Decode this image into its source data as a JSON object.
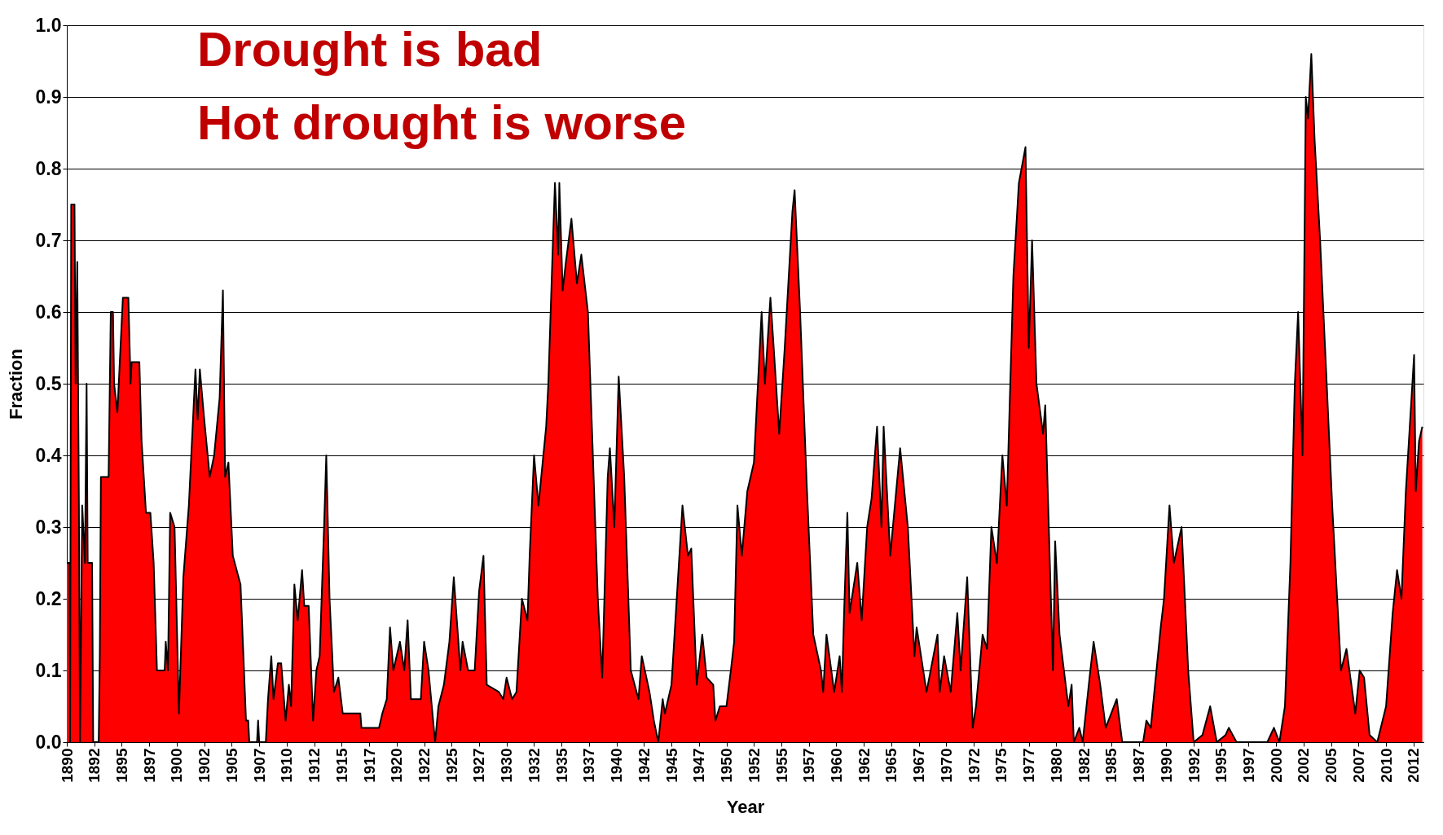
{
  "chart_data": {
    "type": "area",
    "xlabel": "Year",
    "ylabel": "Fraction",
    "annotations": [
      "Drought is bad",
      "Hot drought is worse"
    ],
    "xlim": [
      1890,
      2013.4
    ],
    "xticks": [
      1890,
      {
        "value": 1892.5,
        "label": "1892"
      },
      1895,
      {
        "value": 1897.5,
        "label": "1897"
      },
      1900,
      {
        "value": 1902.5,
        "label": "1902"
      },
      1905,
      {
        "value": 1907.5,
        "label": "1907"
      },
      1910,
      {
        "value": 1912.5,
        "label": "1912"
      },
      1915,
      {
        "value": 1917.5,
        "label": "1917"
      },
      1920,
      {
        "value": 1922.5,
        "label": "1922"
      },
      1925,
      {
        "value": 1927.5,
        "label": "1927"
      },
      1930,
      {
        "value": 1932.5,
        "label": "1932"
      },
      1935,
      {
        "value": 1937.5,
        "label": "1937"
      },
      1940,
      {
        "value": 1942.5,
        "label": "1942"
      },
      1945,
      {
        "value": 1947.5,
        "label": "1947"
      },
      1950,
      {
        "value": 1952.5,
        "label": "1952"
      },
      1955,
      {
        "value": 1957.5,
        "label": "1957"
      },
      1960,
      {
        "value": 1962.5,
        "label": "1962"
      },
      1965,
      {
        "value": 1967.5,
        "label": "1967"
      },
      1970,
      {
        "value": 1972.5,
        "label": "1972"
      },
      1975,
      {
        "value": 1977.5,
        "label": "1977"
      },
      1980,
      {
        "value": 1982.5,
        "label": "1982"
      },
      1985,
      {
        "value": 1987.5,
        "label": "1987"
      },
      1990,
      {
        "value": 1992.5,
        "label": "1992"
      },
      1995,
      {
        "value": 1997.5,
        "label": "1997"
      },
      2000,
      {
        "value": 2002.5,
        "label": "2002"
      },
      2005,
      {
        "value": 2007.5,
        "label": "2007"
      },
      2010,
      {
        "value": 2012.5,
        "label": "2012"
      }
    ],
    "ylim": [
      0,
      1
    ],
    "yticks": [
      {
        "value": 0,
        "label": "0.0"
      },
      0.1,
      0.2,
      0.3,
      0.4,
      0.5,
      0.6,
      0.7,
      0.8,
      0.9,
      {
        "value": 1,
        "label": "1.0"
      }
    ],
    "grid": "y",
    "series": [
      {
        "color": "#ff0000",
        "x": [
          1890.0,
          1890.25,
          1890.3,
          1890.4,
          1890.7,
          1890.8,
          1890.95,
          1891.1,
          1891.2,
          1891.4,
          1891.65,
          1891.8,
          1891.9,
          1892.3,
          1892.4,
          1892.9,
          1893.0,
          1893.1,
          1893.8,
          1894.0,
          1894.2,
          1894.3,
          1894.6,
          1895.1,
          1895.6,
          1895.8,
          1895.9,
          1896.6,
          1896.8,
          1897.2,
          1897.6,
          1897.9,
          1898.2,
          1898.9,
          1899.0,
          1899.2,
          1899.4,
          1899.8,
          1900.2,
          1900.6,
          1901.1,
          1901.7,
          1901.9,
          1902.1,
          1902.5,
          1903.0,
          1903.4,
          1903.9,
          1904.2,
          1904.4,
          1904.7,
          1905.1,
          1905.8,
          1906.3,
          1906.5,
          1906.6,
          1907.3,
          1907.4,
          1907.5,
          1908.1,
          1908.3,
          1908.6,
          1908.8,
          1909.2,
          1909.5,
          1909.9,
          1910.2,
          1910.4,
          1910.6,
          1910.7,
          1911.0,
          1911.4,
          1911.6,
          1912.0,
          1912.4,
          1912.7,
          1913.0,
          1913.4,
          1913.6,
          1913.9,
          1914.3,
          1914.7,
          1915.1,
          1916.7,
          1916.8,
          1918.4,
          1918.7,
          1919.1,
          1919.4,
          1919.7,
          1920.3,
          1920.7,
          1921.0,
          1921.3,
          1922.2,
          1922.5,
          1922.9,
          1923.5,
          1923.8,
          1924.3,
          1924.8,
          1925.2,
          1925.8,
          1926.0,
          1926.5,
          1927.1,
          1927.5,
          1927.9,
          1928.2,
          1929.3,
          1929.7,
          1930.0,
          1930.5,
          1930.9,
          1931.4,
          1931.9,
          1932.1,
          1932.5,
          1932.9,
          1933.6,
          1933.8,
          1934.2,
          1934.4,
          1934.7,
          1934.8,
          1935.1,
          1935.4,
          1935.9,
          1936.4,
          1936.8,
          1937.4,
          1938.3,
          1938.7,
          1939.2,
          1939.4,
          1939.8,
          1940.2,
          1940.7,
          1941.3,
          1942.0,
          1942.3,
          1943.0,
          1943.4,
          1943.8,
          1944.2,
          1944.4,
          1945.0,
          1945.4,
          1946.0,
          1946.5,
          1946.8,
          1947.3,
          1947.8,
          1948.2,
          1948.8,
          1949.0,
          1949.4,
          1950.0,
          1950.4,
          1950.7,
          1951.0,
          1951.4,
          1951.9,
          1952.5,
          1953.2,
          1953.5,
          1954.0,
          1954.3,
          1954.8,
          1955.3,
          1956.0,
          1956.2,
          1956.7,
          1957.3,
          1957.9,
          1958.6,
          1958.8,
          1959.1,
          1959.8,
          1960.3,
          1960.5,
          1960.7,
          1961.0,
          1961.2,
          1961.9,
          1962.3,
          1962.8,
          1963.2,
          1963.7,
          1964.1,
          1964.3,
          1964.9,
          1965.8,
          1966.5,
          1967.1,
          1967.3,
          1968.2,
          1969.2,
          1969.4,
          1969.8,
          1970.4,
          1971.0,
          1971.3,
          1971.9,
          1972.4,
          1972.7,
          1973.3,
          1973.7,
          1974.1,
          1974.6,
          1975.1,
          1975.5,
          1976.1,
          1976.6,
          1977.2,
          1977.5,
          1977.8,
          1978.2,
          1978.8,
          1979.0,
          1979.7,
          1979.9,
          1980.3,
          1981.1,
          1981.4,
          1981.6,
          1982.1,
          1982.4,
          1983.1,
          1983.4,
          1984.0,
          1984.5,
          1985.5,
          1986.0,
          1987.9,
          1988.2,
          1988.6,
          1989.5,
          1989.8,
          1990.3,
          1990.7,
          1991.4,
          1992.0,
          1992.5,
          1993.3,
          1994.0,
          1994.6,
          1995.4,
          1995.7,
          1996.4,
          1999.2,
          1999.8,
          2000.3,
          2000.8,
          2001.3,
          2001.7,
          2002.0,
          2002.4,
          2002.7,
          2002.9,
          2003.2,
          2003.5,
          2004.0,
          2004.6,
          2005.1,
          2005.9,
          2006.4,
          2007.2,
          2007.6,
          2008.0,
          2008.5,
          2009.2,
          2010.0,
          2010.6,
          2011.0,
          2011.4,
          2011.8,
          2012.55,
          2012.7,
          2013.0,
          2013.3
        ],
        "values": [
          0.25,
          0.25,
          0,
          0.75,
          0.75,
          0.5,
          0.67,
          0.33,
          0,
          0.33,
          0.25,
          0.5,
          0.25,
          0.25,
          0,
          0,
          0.12,
          0.37,
          0.37,
          0.6,
          0.6,
          0.5,
          0.46,
          0.62,
          0.62,
          0.5,
          0.53,
          0.53,
          0.42,
          0.32,
          0.32,
          0.25,
          0.1,
          0.1,
          0.14,
          0.1,
          0.32,
          0.3,
          0.04,
          0.23,
          0.33,
          0.52,
          0.45,
          0.52,
          0.45,
          0.37,
          0.4,
          0.48,
          0.63,
          0.37,
          0.39,
          0.26,
          0.22,
          0.03,
          0.03,
          0,
          0,
          0.03,
          0,
          0,
          0.06,
          0.12,
          0.06,
          0.11,
          0.11,
          0.03,
          0.08,
          0.05,
          0.16,
          0.22,
          0.17,
          0.24,
          0.19,
          0.19,
          0.03,
          0.1,
          0.12,
          0.3,
          0.4,
          0.2,
          0.07,
          0.09,
          0.04,
          0.04,
          0.02,
          0.02,
          0.04,
          0.06,
          0.16,
          0.1,
          0.14,
          0.1,
          0.17,
          0.06,
          0.06,
          0.14,
          0.1,
          0,
          0.05,
          0.08,
          0.14,
          0.23,
          0.1,
          0.14,
          0.1,
          0.1,
          0.21,
          0.26,
          0.08,
          0.07,
          0.06,
          0.09,
          0.06,
          0.07,
          0.2,
          0.17,
          0.26,
          0.4,
          0.33,
          0.44,
          0.5,
          0.69,
          0.78,
          0.68,
          0.78,
          0.63,
          0.67,
          0.73,
          0.64,
          0.68,
          0.6,
          0.2,
          0.09,
          0.37,
          0.41,
          0.3,
          0.51,
          0.37,
          0.1,
          0.06,
          0.12,
          0.07,
          0.03,
          0,
          0.06,
          0.04,
          0.08,
          0.18,
          0.33,
          0.26,
          0.27,
          0.08,
          0.15,
          0.09,
          0.08,
          0.03,
          0.05,
          0.05,
          0.1,
          0.14,
          0.33,
          0.26,
          0.35,
          0.39,
          0.6,
          0.5,
          0.62,
          0.55,
          0.43,
          0.55,
          0.74,
          0.77,
          0.6,
          0.36,
          0.15,
          0.1,
          0.07,
          0.15,
          0.07,
          0.12,
          0.07,
          0.18,
          0.32,
          0.18,
          0.25,
          0.17,
          0.3,
          0.34,
          0.44,
          0.3,
          0.44,
          0.26,
          0.41,
          0.3,
          0.12,
          0.16,
          0.07,
          0.15,
          0.07,
          0.12,
          0.07,
          0.18,
          0.1,
          0.23,
          0.02,
          0.05,
          0.15,
          0.13,
          0.3,
          0.25,
          0.4,
          0.33,
          0.65,
          0.78,
          0.83,
          0.55,
          0.7,
          0.5,
          0.43,
          0.47,
          0.1,
          0.28,
          0.15,
          0.05,
          0.08,
          0,
          0.02,
          0,
          0.1,
          0.14,
          0.08,
          0.02,
          0.06,
          0,
          0,
          0.03,
          0.02,
          0.16,
          0.2,
          0.33,
          0.25,
          0.3,
          0.1,
          0,
          0.01,
          0.05,
          0,
          0.01,
          0.02,
          0,
          0,
          0.02,
          0,
          0.05,
          0.25,
          0.5,
          0.6,
          0.4,
          0.9,
          0.87,
          0.96,
          0.84,
          0.7,
          0.5,
          0.33,
          0.1,
          0.13,
          0.04,
          0.1,
          0.09,
          0.01,
          0,
          0.05,
          0.18,
          0.24,
          0.2,
          0.35,
          0.54,
          0.35,
          0.42,
          0.44
        ]
      }
    ]
  }
}
